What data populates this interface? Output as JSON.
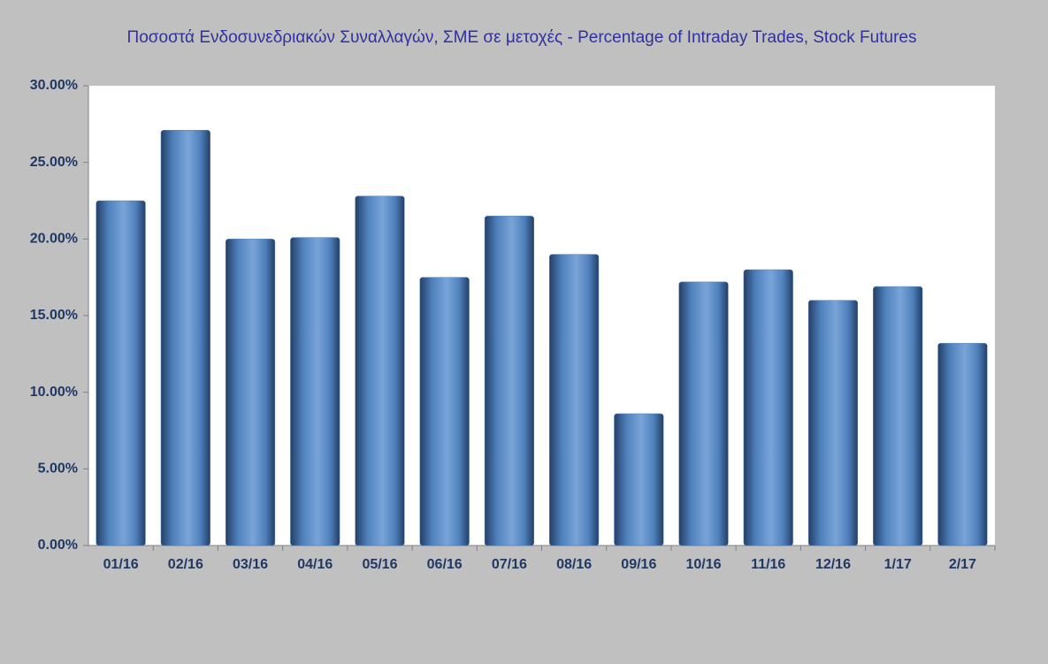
{
  "chart_data": {
    "type": "bar",
    "title": "Ποσοστά Ενδοσυνεδριακών Συναλλαγών, ΣΜΕ σε μετοχές - Percentage of Intraday Trades, Stock Futures",
    "categories": [
      "01/16",
      "02/16",
      "03/16",
      "04/16",
      "05/16",
      "06/16",
      "07/16",
      "08/16",
      "09/16",
      "10/16",
      "11/16",
      "12/16",
      "1/17",
      "2/17"
    ],
    "values": [
      22.5,
      27.1,
      20.0,
      20.1,
      22.8,
      17.5,
      21.5,
      19.0,
      8.6,
      17.2,
      18.0,
      16.0,
      16.9,
      13.2
    ],
    "color": "#4f81bd",
    "ylim": [
      0,
      30
    ],
    "yticks": [
      {
        "value": 0,
        "label": "0.00%"
      },
      {
        "value": 5,
        "label": "5.00%"
      },
      {
        "value": 10,
        "label": "10.00%"
      },
      {
        "value": 15,
        "label": "15.00%"
      },
      {
        "value": 20,
        "label": "20.00%"
      },
      {
        "value": 25,
        "label": "25.00%"
      },
      {
        "value": 30,
        "label": "30.00%"
      }
    ],
    "grid": false
  }
}
